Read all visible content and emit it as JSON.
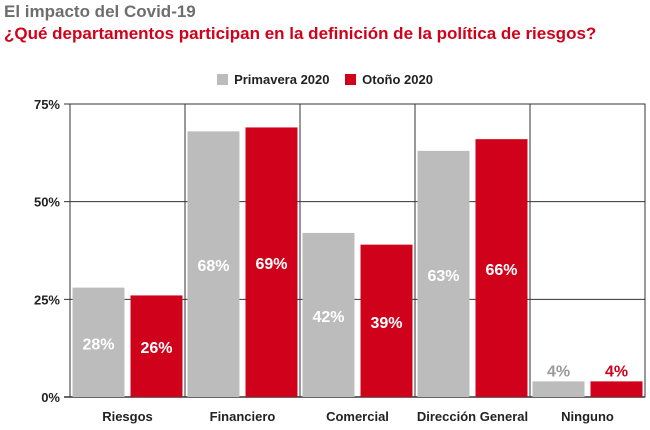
{
  "header": {
    "supertitle": "El impacto del Covid-19",
    "title": "¿Qué departamentos participan en la definición de la política de riesgos?"
  },
  "colors": {
    "series1": "#bcbcbc",
    "series2": "#d0021b",
    "grid": "#333333"
  },
  "chart_data": {
    "type": "bar",
    "title": "¿Qué departamentos participan en la definición de la política de riesgos?",
    "xlabel": "",
    "ylabel": "",
    "categories": [
      "Riesgos",
      "Financiero",
      "Comercial",
      "Dirección General",
      "Ninguno"
    ],
    "series": [
      {
        "name": "Primavera 2020",
        "values": [
          28,
          68,
          42,
          63,
          4
        ],
        "labels": [
          "28%",
          "68%",
          "42%",
          "63%",
          "4%"
        ]
      },
      {
        "name": "Otoño 2020",
        "values": [
          26,
          69,
          39,
          66,
          4
        ],
        "labels": [
          "26%",
          "69%",
          "39%",
          "66%",
          "4%"
        ]
      }
    ],
    "ylim": [
      0,
      75
    ],
    "yticks": [
      0,
      25,
      50,
      75
    ],
    "ytick_labels": [
      "0%",
      "25%",
      "50%",
      "75%"
    ],
    "grid": true,
    "legend": "top-center"
  }
}
